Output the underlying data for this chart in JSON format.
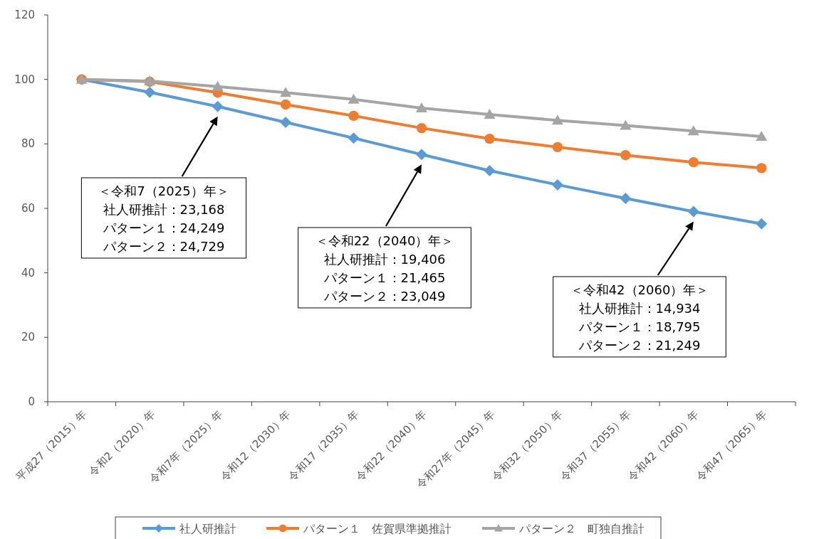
{
  "chart_data": {
    "type": "line",
    "categories": [
      "平成27（2015）年",
      "令和2（2020）年",
      "令和7年（2025）年",
      "令和12（2030）年",
      "令和17（2035）年",
      "令和22（2040）年",
      "令和27年（2045）年",
      "令和32（2050）年",
      "令和37（2055）年",
      "令和42（2060）年",
      "令和47（2065）年"
    ],
    "series": [
      {
        "name": "社人研推計",
        "color": "#5b9bd5",
        "marker": "diamond",
        "values": [
          100,
          96.0,
          91.6,
          86.7,
          81.8,
          76.7,
          71.7,
          67.3,
          63.1,
          59.0,
          55.2
        ]
      },
      {
        "name": "パターン１　佐賀県準拠推計",
        "color": "#ed7d31",
        "marker": "circle",
        "values": [
          100,
          99.3,
          95.9,
          92.2,
          88.7,
          84.9,
          81.6,
          79.0,
          76.5,
          74.3,
          72.5
        ]
      },
      {
        "name": "パターン２　町独自推計",
        "color": "#a5a5a5",
        "marker": "triangle",
        "values": [
          100,
          99.5,
          97.8,
          95.9,
          93.8,
          91.1,
          89.1,
          87.3,
          85.7,
          84.0,
          82.3
        ]
      }
    ],
    "ylim": [
      0,
      120
    ],
    "yticks": [
      0,
      20,
      40,
      60,
      80,
      100,
      120
    ],
    "grid": false,
    "legend": "bottom",
    "line_style": "solid",
    "annotations": [
      "＜令和7（2025）年＞",
      "社人研推計：23,168",
      "パターン１：24,249",
      "パターン２：24,729",
      "＜令和22（2040）年＞",
      "社人研推計：19,406",
      "パターン１：21,465",
      "パターン２：23,049",
      "＜令和42（2060）年＞",
      "社人研推計：14,934",
      "パターン１：18,795",
      "パターン２：21,249"
    ]
  }
}
